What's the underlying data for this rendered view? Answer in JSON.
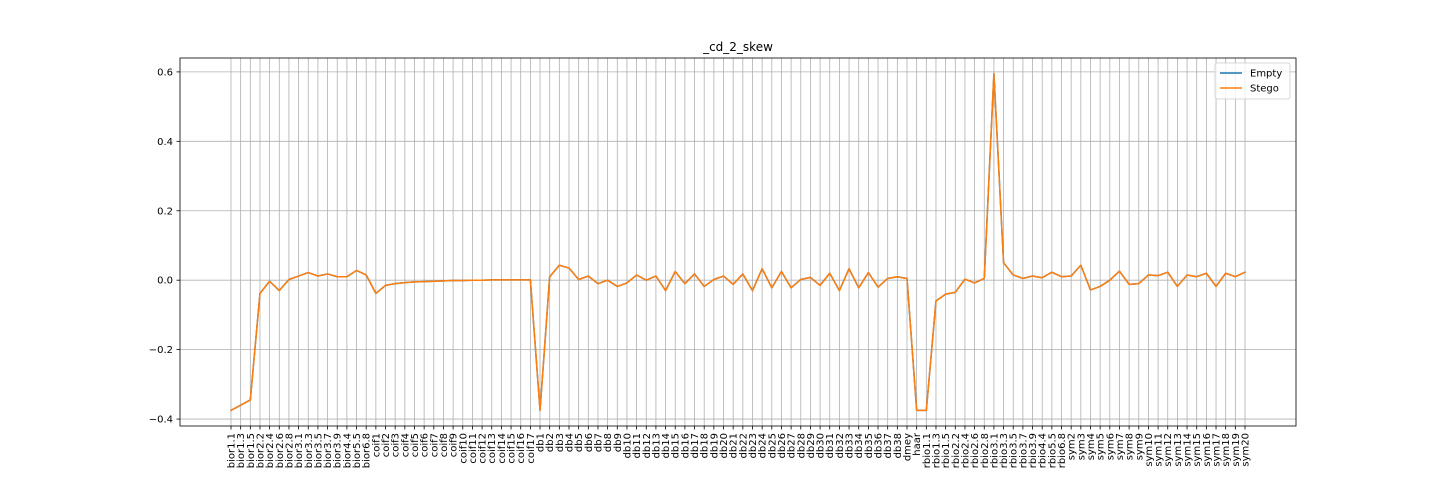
{
  "chart_data": {
    "type": "line",
    "title": "_cd_2_skew",
    "xlabel": "",
    "ylabel": "",
    "ylim": [
      -0.42,
      0.64
    ],
    "yticks": [
      -0.4,
      -0.2,
      0.0,
      0.2,
      0.4,
      0.6
    ],
    "ytick_labels": [
      "−0.4",
      "−0.2",
      "0.0",
      "0.2",
      "0.4",
      "0.6"
    ],
    "grid": true,
    "legend_position": "top-right",
    "colors": {
      "Empty": "#1f77b4",
      "Stego": "#ff7f0e"
    },
    "categories": [
      "bior1.1",
      "bior1.3",
      "bior1.5",
      "bior2.2",
      "bior2.4",
      "bior2.6",
      "bior2.8",
      "bior3.1",
      "bior3.3",
      "bior3.5",
      "bior3.7",
      "bior3.9",
      "bior4.4",
      "bior5.5",
      "bior6.8",
      "coif1",
      "coif2",
      "coif3",
      "coif4",
      "coif5",
      "coif6",
      "coif7",
      "coif8",
      "coif9",
      "coif10",
      "coif11",
      "coif12",
      "coif13",
      "coif14",
      "coif15",
      "coif16",
      "coif17",
      "db1",
      "db2",
      "db3",
      "db4",
      "db5",
      "db6",
      "db7",
      "db8",
      "db9",
      "db10",
      "db11",
      "db12",
      "db13",
      "db14",
      "db15",
      "db16",
      "db17",
      "db18",
      "db19",
      "db20",
      "db21",
      "db22",
      "db23",
      "db24",
      "db25",
      "db26",
      "db27",
      "db28",
      "db29",
      "db30",
      "db31",
      "db32",
      "db33",
      "db34",
      "db35",
      "db36",
      "db37",
      "db38",
      "dmey",
      "haar",
      "rbio1.1",
      "rbio1.3",
      "rbio1.5",
      "rbio2.2",
      "rbio2.4",
      "rbio2.6",
      "rbio2.8",
      "rbio3.1",
      "rbio3.3",
      "rbio3.5",
      "rbio3.7",
      "rbio3.9",
      "rbio4.4",
      "rbio5.5",
      "rbio6.8",
      "sym2",
      "sym3",
      "sym4",
      "sym5",
      "sym6",
      "sym7",
      "sym8",
      "sym9",
      "sym10",
      "sym11",
      "sym12",
      "sym13",
      "sym14",
      "sym15",
      "sym16",
      "sym17",
      "sym18",
      "sym19",
      "sym20"
    ],
    "series": [
      {
        "name": "Empty",
        "values": [
          -0.375,
          -0.36,
          -0.345,
          -0.038,
          -0.003,
          -0.03,
          0.002,
          0.012,
          0.022,
          0.012,
          0.018,
          0.01,
          0.01,
          0.028,
          0.015,
          -0.038,
          -0.015,
          -0.01,
          -0.007,
          -0.005,
          -0.004,
          -0.003,
          -0.002,
          -0.001,
          -0.001,
          0.0,
          0.0,
          0.001,
          0.001,
          0.001,
          0.001,
          0.001,
          -0.375,
          0.01,
          0.043,
          0.035,
          0.002,
          0.012,
          -0.01,
          0.0,
          -0.018,
          -0.008,
          0.015,
          0.0,
          0.012,
          -0.03,
          0.025,
          -0.01,
          0.018,
          -0.018,
          0.002,
          0.012,
          -0.012,
          0.018,
          -0.03,
          0.033,
          -0.022,
          0.025,
          -0.022,
          0.002,
          0.008,
          -0.015,
          0.02,
          -0.03,
          0.033,
          -0.022,
          0.022,
          -0.02,
          0.005,
          0.01,
          0.005,
          -0.375,
          -0.375,
          -0.06,
          -0.04,
          -0.035,
          0.003,
          -0.008,
          0.005,
          0.595,
          0.05,
          0.015,
          0.005,
          0.012,
          0.007,
          0.023,
          0.01,
          0.012,
          0.043,
          -0.028,
          -0.018,
          0.0,
          0.026,
          -0.012,
          -0.01,
          0.015,
          0.013,
          0.023,
          -0.018,
          0.015,
          0.01,
          0.02,
          -0.018,
          0.02,
          0.01,
          0.023
        ]
      },
      {
        "name": "Stego",
        "values": [
          -0.375,
          -0.36,
          -0.345,
          -0.038,
          -0.003,
          -0.03,
          0.002,
          0.012,
          0.022,
          0.012,
          0.018,
          0.01,
          0.01,
          0.028,
          0.015,
          -0.038,
          -0.015,
          -0.01,
          -0.007,
          -0.005,
          -0.004,
          -0.003,
          -0.002,
          -0.001,
          -0.001,
          0.0,
          0.0,
          0.001,
          0.001,
          0.001,
          0.001,
          0.001,
          -0.375,
          0.01,
          0.043,
          0.035,
          0.002,
          0.012,
          -0.01,
          0.0,
          -0.018,
          -0.008,
          0.015,
          0.0,
          0.012,
          -0.03,
          0.025,
          -0.01,
          0.018,
          -0.018,
          0.002,
          0.012,
          -0.012,
          0.018,
          -0.03,
          0.033,
          -0.022,
          0.025,
          -0.022,
          0.002,
          0.008,
          -0.015,
          0.02,
          -0.03,
          0.033,
          -0.022,
          0.022,
          -0.02,
          0.005,
          0.01,
          0.005,
          -0.375,
          -0.375,
          -0.06,
          -0.04,
          -0.035,
          0.003,
          -0.008,
          0.005,
          0.595,
          0.05,
          0.015,
          0.005,
          0.012,
          0.007,
          0.023,
          0.01,
          0.012,
          0.043,
          -0.028,
          -0.018,
          0.0,
          0.026,
          -0.012,
          -0.01,
          0.015,
          0.013,
          0.023,
          -0.018,
          0.015,
          0.01,
          0.02,
          -0.018,
          0.02,
          0.01,
          0.023
        ]
      }
    ]
  }
}
